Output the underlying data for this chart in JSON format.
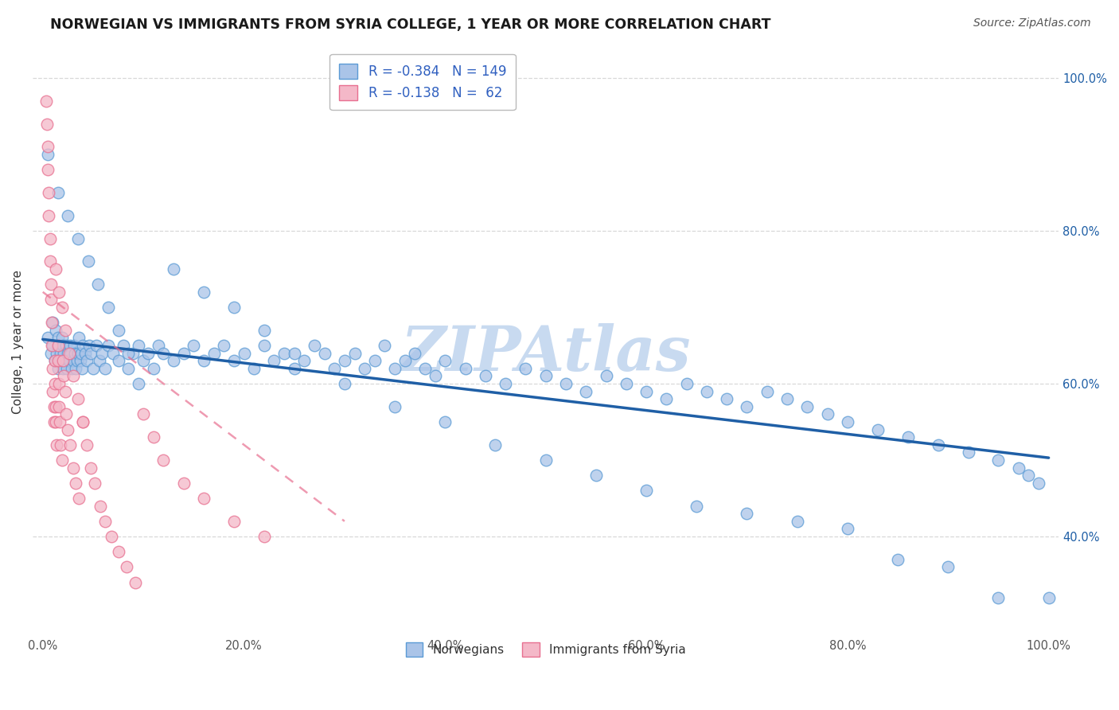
{
  "title": "NORWEGIAN VS IMMIGRANTS FROM SYRIA COLLEGE, 1 YEAR OR MORE CORRELATION CHART",
  "source_text": "Source: ZipAtlas.com",
  "ylabel": "College, 1 year or more",
  "xlim": [
    -0.01,
    1.01
  ],
  "ylim": [
    0.27,
    1.04
  ],
  "xticks": [
    0.0,
    0.2,
    0.4,
    0.6,
    0.8,
    1.0
  ],
  "yticks": [
    0.4,
    0.6,
    0.8,
    1.0
  ],
  "xtick_labels": [
    "0.0%",
    "20.0%",
    "40.0%",
    "60.0%",
    "80.0%",
    "100.0%"
  ],
  "ytick_labels": [
    "40.0%",
    "60.0%",
    "80.0%",
    "100.0%"
  ],
  "legend_bottom_labels": [
    "Norwegians",
    "Immigrants from Syria"
  ],
  "watermark": "ZIPAtlas",
  "watermark_color": "#c8daf0",
  "blue_line_color": "#1f5fa6",
  "pink_line_color": "#e87090",
  "blue_dot_face": "#aac4e8",
  "blue_dot_edge": "#5b9bd5",
  "pink_dot_face": "#f4b8c8",
  "pink_dot_edge": "#e87090",
  "background_color": "#ffffff",
  "grid_color": "#d8d8d8",
  "blue_scatter_x": [
    0.005,
    0.008,
    0.01,
    0.01,
    0.012,
    0.013,
    0.014,
    0.015,
    0.015,
    0.016,
    0.017,
    0.018,
    0.019,
    0.02,
    0.02,
    0.021,
    0.022,
    0.023,
    0.024,
    0.025,
    0.026,
    0.027,
    0.028,
    0.029,
    0.03,
    0.031,
    0.032,
    0.033,
    0.034,
    0.035,
    0.036,
    0.037,
    0.038,
    0.039,
    0.04,
    0.042,
    0.044,
    0.046,
    0.048,
    0.05,
    0.053,
    0.056,
    0.059,
    0.062,
    0.065,
    0.07,
    0.075,
    0.08,
    0.085,
    0.09,
    0.095,
    0.1,
    0.105,
    0.11,
    0.115,
    0.12,
    0.13,
    0.14,
    0.15,
    0.16,
    0.17,
    0.18,
    0.19,
    0.2,
    0.21,
    0.22,
    0.23,
    0.24,
    0.25,
    0.26,
    0.27,
    0.28,
    0.29,
    0.3,
    0.31,
    0.32,
    0.33,
    0.34,
    0.35,
    0.36,
    0.37,
    0.38,
    0.39,
    0.4,
    0.42,
    0.44,
    0.46,
    0.48,
    0.5,
    0.52,
    0.54,
    0.56,
    0.58,
    0.6,
    0.62,
    0.64,
    0.66,
    0.68,
    0.7,
    0.72,
    0.74,
    0.76,
    0.78,
    0.8,
    0.83,
    0.86,
    0.89,
    0.92,
    0.95,
    0.97,
    0.98,
    0.99,
    0.005,
    0.015,
    0.025,
    0.035,
    0.045,
    0.055,
    0.065,
    0.075,
    0.085,
    0.095,
    0.13,
    0.16,
    0.19,
    0.22,
    0.25,
    0.3,
    0.35,
    0.4,
    0.45,
    0.5,
    0.55,
    0.6,
    0.65,
    0.7,
    0.75,
    0.8,
    0.85,
    0.9,
    0.95,
    1.0
  ],
  "blue_scatter_y": [
    0.66,
    0.64,
    0.68,
    0.65,
    0.63,
    0.67,
    0.64,
    0.66,
    0.62,
    0.65,
    0.63,
    0.64,
    0.66,
    0.65,
    0.62,
    0.64,
    0.63,
    0.65,
    0.62,
    0.64,
    0.63,
    0.65,
    0.64,
    0.62,
    0.63,
    0.65,
    0.64,
    0.62,
    0.63,
    0.64,
    0.66,
    0.63,
    0.64,
    0.62,
    0.65,
    0.64,
    0.63,
    0.65,
    0.64,
    0.62,
    0.65,
    0.63,
    0.64,
    0.62,
    0.65,
    0.64,
    0.63,
    0.65,
    0.62,
    0.64,
    0.65,
    0.63,
    0.64,
    0.62,
    0.65,
    0.64,
    0.63,
    0.64,
    0.65,
    0.63,
    0.64,
    0.65,
    0.63,
    0.64,
    0.62,
    0.65,
    0.63,
    0.64,
    0.62,
    0.63,
    0.65,
    0.64,
    0.62,
    0.63,
    0.64,
    0.62,
    0.63,
    0.65,
    0.62,
    0.63,
    0.64,
    0.62,
    0.61,
    0.63,
    0.62,
    0.61,
    0.6,
    0.62,
    0.61,
    0.6,
    0.59,
    0.61,
    0.6,
    0.59,
    0.58,
    0.6,
    0.59,
    0.58,
    0.57,
    0.59,
    0.58,
    0.57,
    0.56,
    0.55,
    0.54,
    0.53,
    0.52,
    0.51,
    0.5,
    0.49,
    0.48,
    0.47,
    0.9,
    0.85,
    0.82,
    0.79,
    0.76,
    0.73,
    0.7,
    0.67,
    0.64,
    0.6,
    0.75,
    0.72,
    0.7,
    0.67,
    0.64,
    0.6,
    0.57,
    0.55,
    0.52,
    0.5,
    0.48,
    0.46,
    0.44,
    0.43,
    0.42,
    0.41,
    0.37,
    0.36,
    0.32,
    0.32
  ],
  "pink_scatter_x": [
    0.003,
    0.004,
    0.005,
    0.005,
    0.006,
    0.006,
    0.007,
    0.007,
    0.008,
    0.008,
    0.009,
    0.009,
    0.01,
    0.01,
    0.011,
    0.011,
    0.012,
    0.012,
    0.013,
    0.013,
    0.014,
    0.015,
    0.015,
    0.016,
    0.016,
    0.017,
    0.018,
    0.019,
    0.02,
    0.021,
    0.022,
    0.023,
    0.025,
    0.027,
    0.03,
    0.033,
    0.036,
    0.04,
    0.044,
    0.048,
    0.052,
    0.057,
    0.062,
    0.068,
    0.075,
    0.083,
    0.092,
    0.1,
    0.11,
    0.12,
    0.14,
    0.16,
    0.19,
    0.22,
    0.013,
    0.016,
    0.019,
    0.022,
    0.026,
    0.03,
    0.035,
    0.04
  ],
  "pink_scatter_y": [
    0.97,
    0.94,
    0.91,
    0.88,
    0.85,
    0.82,
    0.79,
    0.76,
    0.73,
    0.71,
    0.68,
    0.65,
    0.62,
    0.59,
    0.57,
    0.55,
    0.63,
    0.6,
    0.57,
    0.55,
    0.52,
    0.65,
    0.63,
    0.6,
    0.57,
    0.55,
    0.52,
    0.5,
    0.63,
    0.61,
    0.59,
    0.56,
    0.54,
    0.52,
    0.49,
    0.47,
    0.45,
    0.55,
    0.52,
    0.49,
    0.47,
    0.44,
    0.42,
    0.4,
    0.38,
    0.36,
    0.34,
    0.56,
    0.53,
    0.5,
    0.47,
    0.45,
    0.42,
    0.4,
    0.75,
    0.72,
    0.7,
    0.67,
    0.64,
    0.61,
    0.58,
    0.55
  ],
  "blue_trend_x": [
    0.0,
    1.0
  ],
  "blue_trend_y": [
    0.658,
    0.503
  ],
  "pink_trend_x": [
    0.0,
    0.3
  ],
  "pink_trend_y": [
    0.72,
    0.42
  ]
}
